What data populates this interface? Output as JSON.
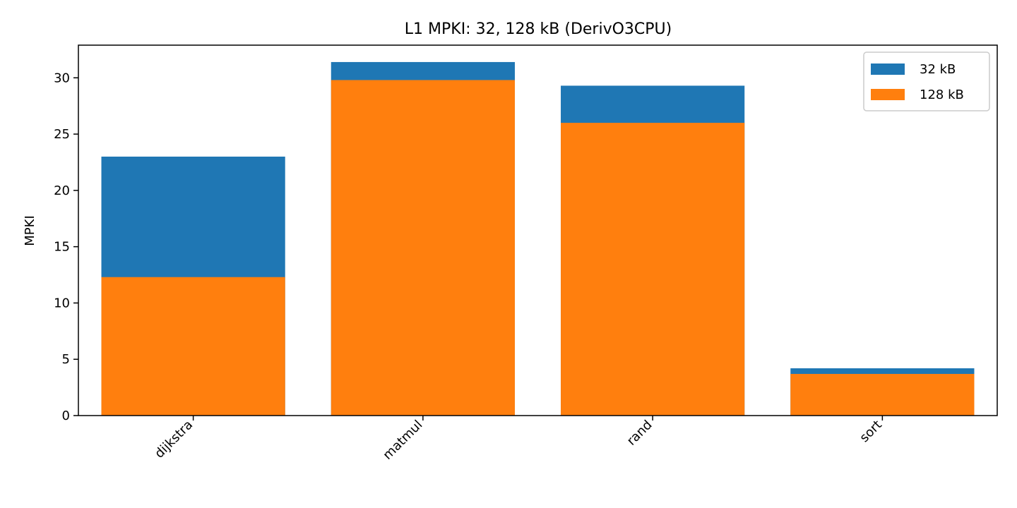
{
  "chart_data": {
    "type": "bar",
    "title": "L1 MPKI: 32, 128 kB (DerivO3CPU)",
    "xlabel": "",
    "ylabel": "MPKI",
    "categories": [
      "dijkstra",
      "matmul",
      "rand",
      "sort"
    ],
    "series": [
      {
        "name": "32 kB",
        "values": [
          23.0,
          31.4,
          29.3,
          4.2
        ],
        "color": "#1f77b4"
      },
      {
        "name": "128 kB",
        "values": [
          12.3,
          29.8,
          26.0,
          3.7
        ],
        "color": "#ff7f0e"
      }
    ],
    "ylim": [
      0,
      32.9
    ],
    "yticks": [
      0,
      5,
      10,
      15,
      20,
      25,
      30
    ],
    "grid": false,
    "legend_position": "top-right",
    "overlay": true
  }
}
